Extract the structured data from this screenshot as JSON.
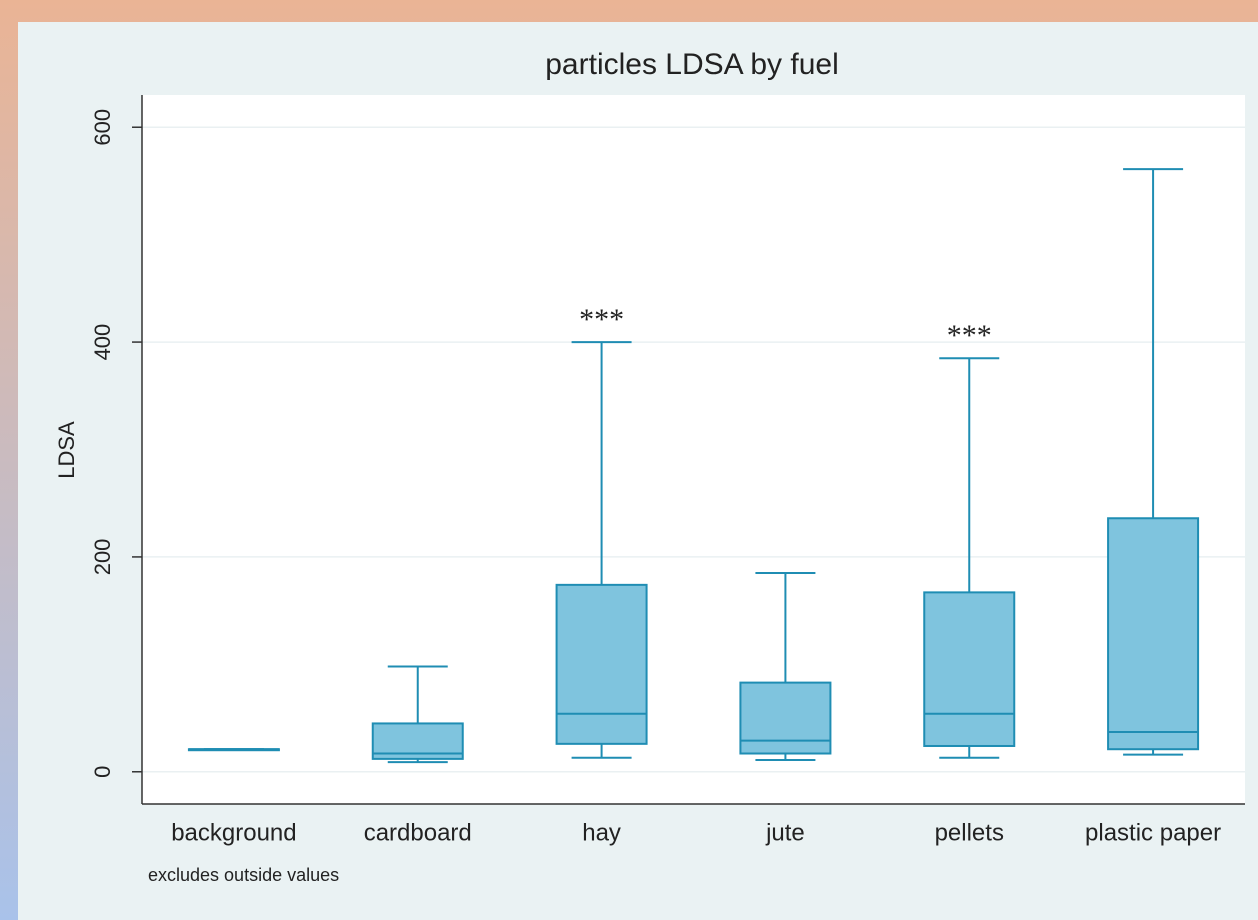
{
  "chart_data": {
    "type": "box",
    "title": "particles LDSA by fuel",
    "ylabel": "LDSA",
    "note": "excludes outside values",
    "categories": [
      "background",
      "cardboard",
      "hay",
      "jute",
      "pellets",
      "plastic paper"
    ],
    "values": [
      {
        "min": 21,
        "q1": 21,
        "median": 21,
        "q3": 21,
        "max": 21
      },
      {
        "min": 9,
        "q1": 12,
        "median": 17,
        "q3": 45,
        "max": 98
      },
      {
        "min": 13,
        "q1": 26,
        "median": 54,
        "q3": 174,
        "max": 400
      },
      {
        "min": 11,
        "q1": 17,
        "median": 29,
        "q3": 83,
        "max": 185
      },
      {
        "min": 13,
        "q1": 24,
        "median": 54,
        "q3": 167,
        "max": 385
      },
      {
        "min": 16,
        "q1": 21,
        "median": 37,
        "q3": 236,
        "max": 561
      }
    ],
    "color": "#7fc4de",
    "edge_color": "#1f8db3",
    "annotations": [
      {
        "text": "***",
        "category": "hay"
      },
      {
        "text": "***",
        "category": "pellets"
      }
    ],
    "ylim": [
      -30,
      630
    ],
    "yticks": [
      0,
      200,
      400,
      600
    ],
    "grid": true
  }
}
